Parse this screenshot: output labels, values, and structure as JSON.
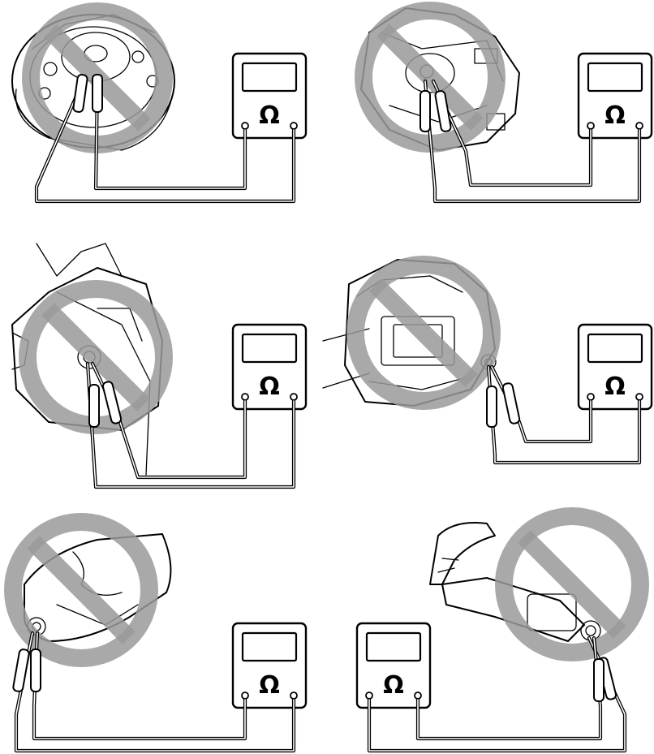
{
  "meter": {
    "symbol": "Ω"
  },
  "panels": [
    {
      "id": "airbag-horn-pad"
    },
    {
      "id": "steering-pad-rear"
    },
    {
      "id": "knee-airbag"
    },
    {
      "id": "seat-airbag"
    },
    {
      "id": "curtain-airbag"
    },
    {
      "id": "pretensioner"
    }
  ],
  "colors": {
    "line": "#000000",
    "prohibit": "#9a9a9a",
    "background": "#ffffff"
  }
}
